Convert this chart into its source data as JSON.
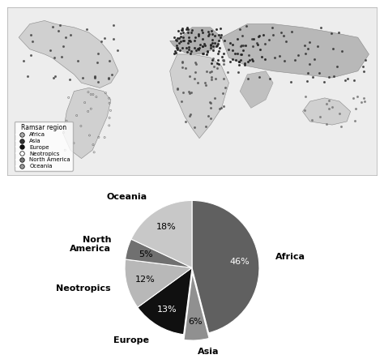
{
  "pie_labels": [
    "Africa",
    "Asia",
    "Europe",
    "Neotropics",
    "North\nAmerica",
    "Oceania"
  ],
  "pie_values": [
    46,
    6,
    13,
    12,
    5,
    18
  ],
  "pie_colors": [
    "#606060",
    "#909090",
    "#101010",
    "#b8b8b8",
    "#707070",
    "#c8c8c8"
  ],
  "pie_explode": [
    0.0,
    0.08,
    0.0,
    0.0,
    0.0,
    0.0
  ],
  "pie_startangle": 90,
  "pie_counterclock": false,
  "legend_title": "Ramsar region",
  "legend_labels": [
    "Africa",
    "Asia",
    "Europe",
    "Neotropics",
    "North America",
    "Oceania"
  ],
  "legend_marker_colors": [
    "#aaaaaa",
    "#333333",
    "#111111",
    "#ffffff",
    "#777777",
    "#999999"
  ],
  "pct_colors": [
    "white",
    "black",
    "white",
    "black",
    "black",
    "black"
  ],
  "label_fontsize": 8,
  "pct_fontsize": 8
}
